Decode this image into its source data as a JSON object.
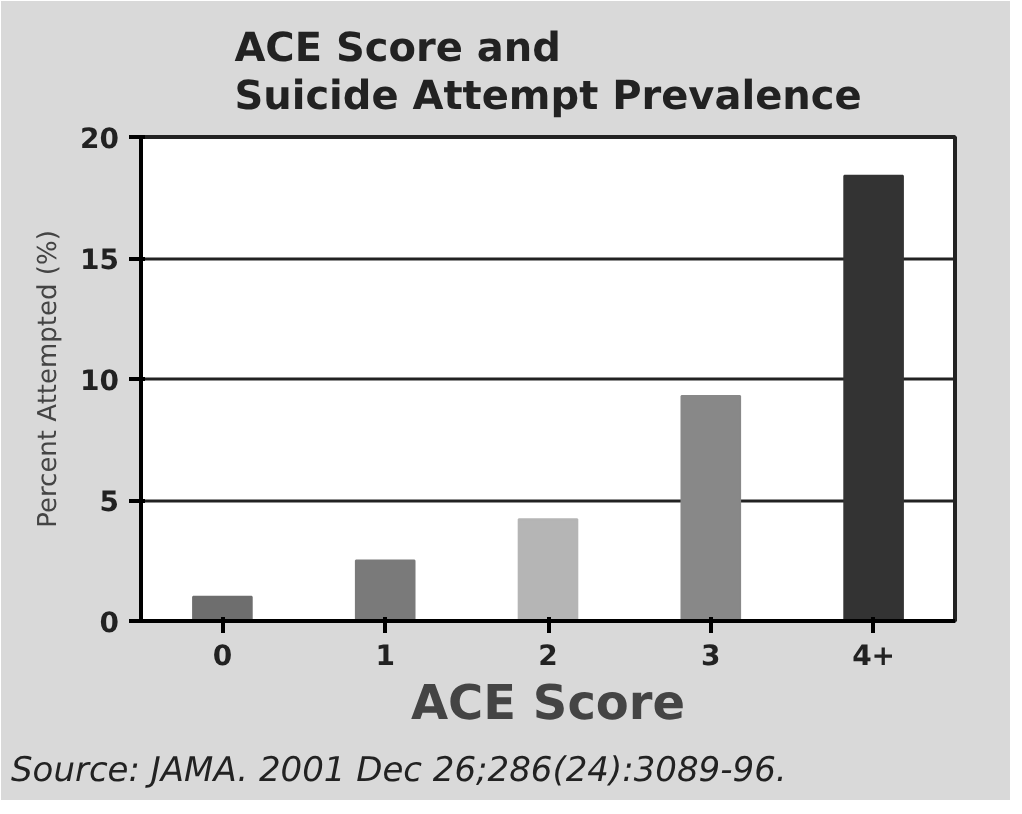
{
  "chart_data": {
    "type": "bar",
    "title": "ACE Score and\nSuicide Attempt Prevalence",
    "xlabel": "ACE Score",
    "ylabel": "Percent Attempted (%)",
    "categories": [
      "0",
      "1",
      "2",
      "3",
      "4+"
    ],
    "values": [
      1.0,
      2.5,
      4.2,
      9.3,
      18.4
    ],
    "colors": [
      "#6e6e6e",
      "#7a7a7a",
      "#b5b5b5",
      "#888888",
      "#333333"
    ],
    "ylim": [
      0,
      20
    ],
    "yticks": [
      0,
      5,
      10,
      15,
      20
    ],
    "grid": "y",
    "annotations": [
      "Source: JAMA. 2001 Dec 26;286(24):3089-96."
    ]
  }
}
